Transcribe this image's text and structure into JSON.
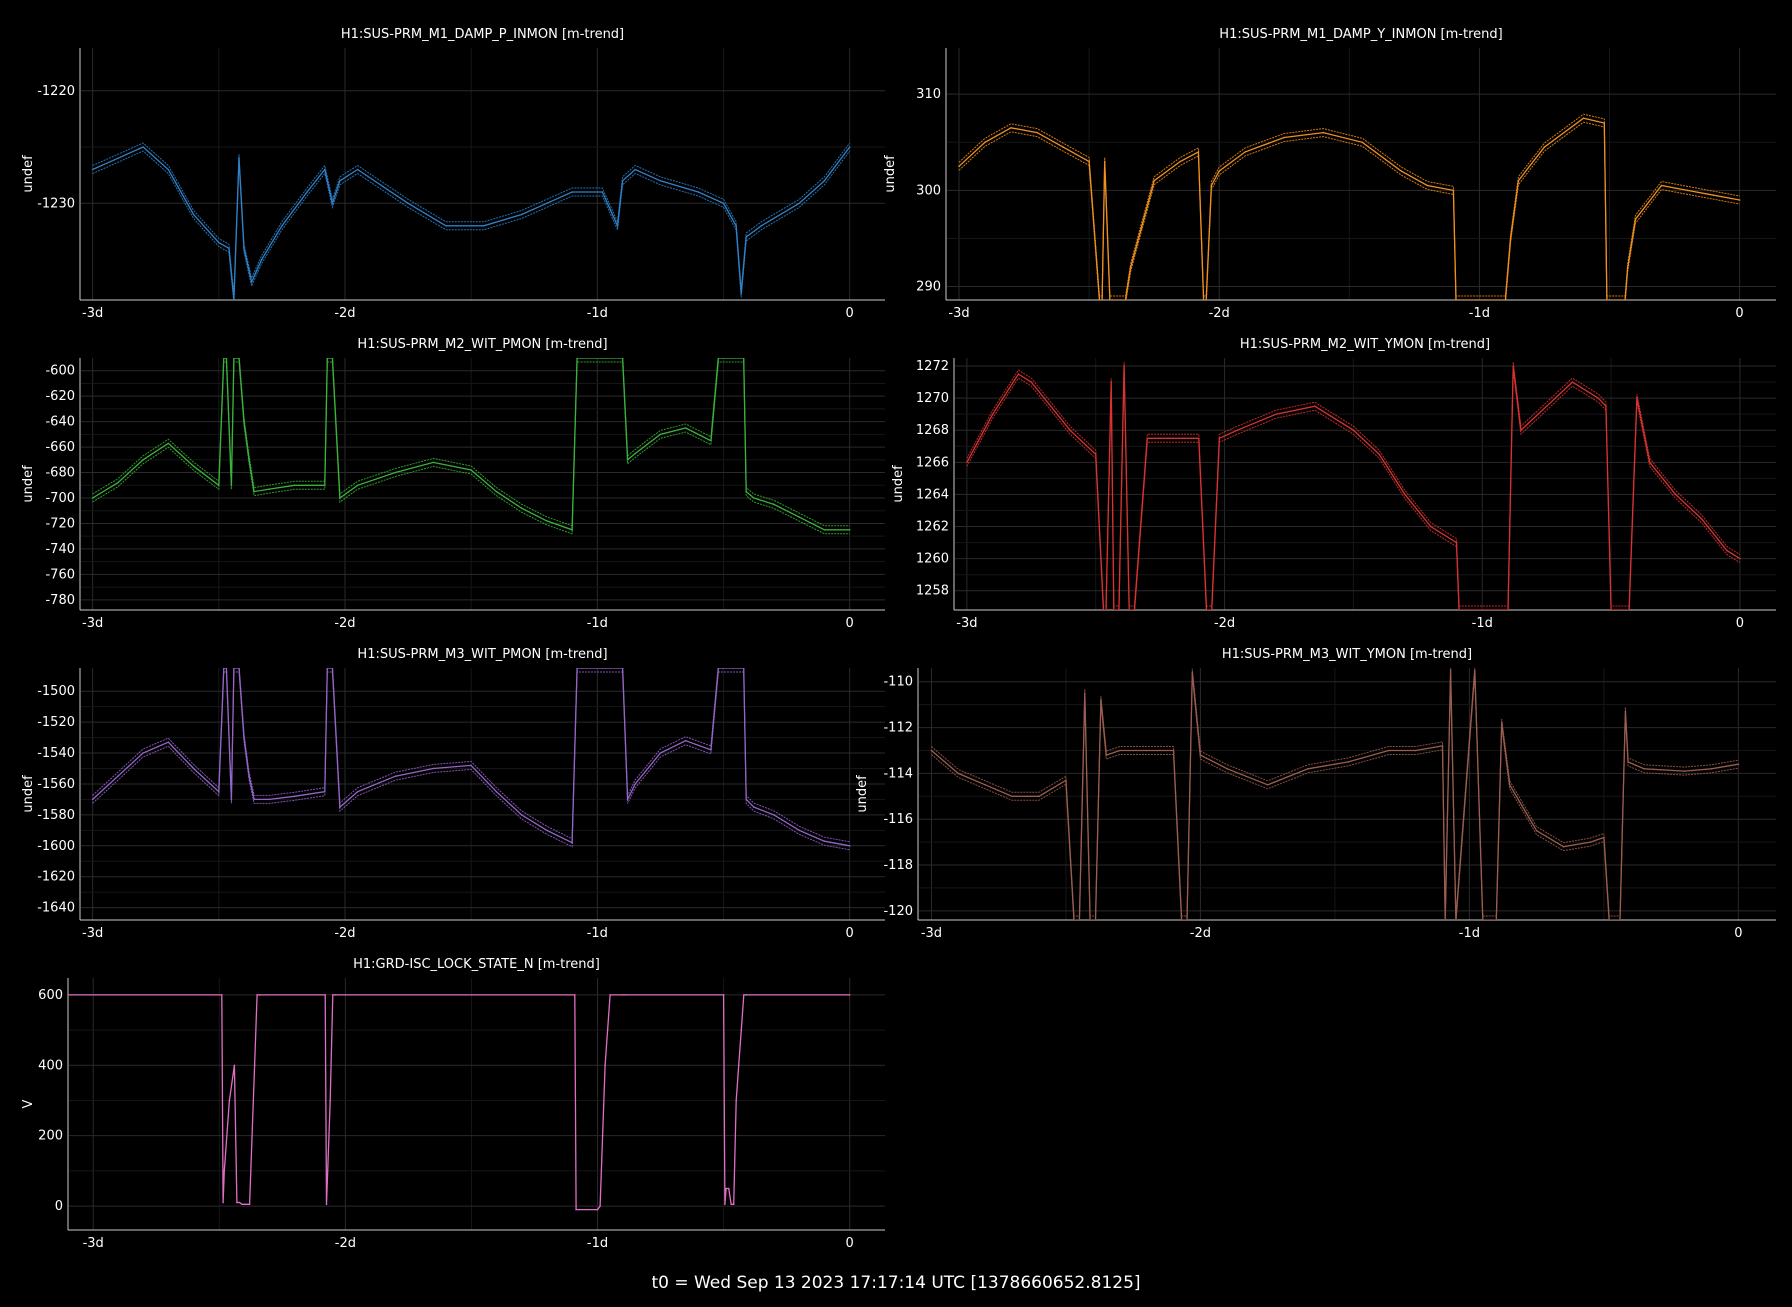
{
  "footer": "t0 = Wed Sep 13 2023 17:17:14 UTC [1378660652.8125]",
  "chart_data": [
    {
      "type": "line",
      "title": "H1:SUS-PRM_M1_DAMP_P_INMON [m-trend]",
      "ylabel": "undef",
      "color": "#2f82c8",
      "xlim": [
        -3.05,
        0.14
      ],
      "ylim": [
        -1238.6,
        -1216.2
      ],
      "xticks": [
        -3,
        -2,
        -1,
        0
      ],
      "xticklabels": [
        "-3d",
        "-2d",
        "-1d",
        "0"
      ],
      "yticks": [
        -1220,
        -1230
      ],
      "yticklabels": [
        "-1220",
        "-1230"
      ],
      "series": [
        {
          "x": [
            -3.0,
            -2.9,
            -2.8,
            -2.7,
            -2.6,
            -2.5,
            -2.46,
            -2.44,
            -2.42,
            -2.4,
            -2.37,
            -2.35,
            -2.33,
            -2.25,
            -2.15,
            -2.08,
            -2.05,
            -2.02,
            -1.95,
            -1.85,
            -1.75,
            -1.6,
            -1.45,
            -1.3,
            -1.2,
            -1.1,
            -0.98,
            -0.92,
            -0.9,
            -0.85,
            -0.75,
            -0.6,
            -0.5,
            -0.45,
            -0.43,
            -0.41,
            -0.35,
            -0.2,
            -0.1,
            0.0
          ],
          "y": [
            -1227,
            -1226,
            -1225,
            -1227,
            -1231,
            -1233.5,
            -1234,
            -1238.5,
            -1226,
            -1234,
            -1237,
            -1236,
            -1235,
            -1232,
            -1229,
            -1227,
            -1230,
            -1228,
            -1227,
            -1228.5,
            -1230,
            -1232,
            -1232,
            -1231,
            -1230,
            -1229,
            -1229,
            -1232,
            -1228,
            -1227,
            -1228,
            -1229,
            -1230,
            -1232,
            -1238,
            -1233,
            -1232,
            -1230,
            -1228,
            -1225
          ]
        }
      ]
    },
    {
      "type": "line",
      "title": "H1:SUS-PRM_M1_DAMP_Y_INMON [m-trend]",
      "ylabel": "undef",
      "color": "#f0901e",
      "xlim": [
        -3.05,
        0.14
      ],
      "ylim": [
        288.6,
        314.8
      ],
      "xticks": [
        -3,
        -2,
        -1,
        0
      ],
      "xticklabels": [
        "-3d",
        "-2d",
        "-1d",
        "0"
      ],
      "yticks": [
        310,
        300,
        290
      ],
      "yticklabels": [
        "310",
        "300",
        "290"
      ],
      "series": [
        {
          "x": [
            -3.0,
            -2.9,
            -2.8,
            -2.7,
            -2.6,
            -2.5,
            -2.46,
            -2.45,
            -2.44,
            -2.42,
            -2.41,
            -2.38,
            -2.36,
            -2.34,
            -2.3,
            -2.25,
            -2.15,
            -2.08,
            -2.06,
            -2.05,
            -2.03,
            -2.0,
            -1.9,
            -1.75,
            -1.6,
            -1.45,
            -1.3,
            -1.2,
            -1.1,
            -1.09,
            -1.08,
            -1.06,
            -0.98,
            -0.9,
            -0.88,
            -0.85,
            -0.75,
            -0.6,
            -0.52,
            -0.51,
            -0.5,
            -0.46,
            -0.44,
            -0.43,
            -0.4,
            -0.3,
            -0.2,
            -0.1,
            0.0
          ],
          "y": [
            302.5,
            305,
            306.5,
            306,
            304.5,
            303,
            288.6,
            288.6,
            303,
            288.6,
            288.6,
            288.6,
            288.6,
            292,
            296,
            301,
            303,
            304,
            288.6,
            288.6,
            300.5,
            302,
            304,
            305.5,
            306,
            305,
            302,
            300.5,
            300,
            288.6,
            288.6,
            288.6,
            288.6,
            288.6,
            295,
            301,
            304.5,
            307.5,
            307,
            288.6,
            288.6,
            288.6,
            288.6,
            292,
            297,
            300.5,
            300,
            299.5,
            299
          ]
        }
      ]
    },
    {
      "type": "line",
      "title": "H1:SUS-PRM_M2_WIT_PMON [m-trend]",
      "ylabel": "undef",
      "color": "#3cb23c",
      "xlim": [
        -3.05,
        0.14
      ],
      "ylim": [
        -788,
        -590
      ],
      "xticks": [
        -3,
        -2,
        -1,
        0
      ],
      "xticklabels": [
        "-3d",
        "-2d",
        "-1d",
        "0"
      ],
      "yticks": [
        -600,
        -620,
        -640,
        -660,
        -680,
        -700,
        -720,
        -740,
        -760,
        -780
      ],
      "yticklabels": [
        "-600",
        "-620",
        "-640",
        "-660",
        "-680",
        "-700",
        "-720",
        "-740",
        "-760",
        "-780"
      ],
      "series": [
        {
          "x": [
            -3.0,
            -2.9,
            -2.8,
            -2.7,
            -2.6,
            -2.5,
            -2.48,
            -2.47,
            -2.45,
            -2.44,
            -2.42,
            -2.4,
            -2.38,
            -2.36,
            -2.3,
            -2.2,
            -2.08,
            -2.07,
            -2.05,
            -2.02,
            -1.95,
            -1.8,
            -1.65,
            -1.5,
            -1.4,
            -1.3,
            -1.2,
            -1.1,
            -1.08,
            -1.06,
            -0.98,
            -0.9,
            -0.88,
            -0.85,
            -0.75,
            -0.65,
            -0.55,
            -0.52,
            -0.5,
            -0.46,
            -0.42,
            -0.41,
            -0.38,
            -0.3,
            -0.2,
            -0.1,
            0.0
          ],
          "y": [
            -700,
            -688,
            -670,
            -657,
            -675,
            -690,
            -590,
            -590,
            -690,
            -590,
            -590,
            -640,
            -670,
            -695,
            -693,
            -690,
            -690,
            -590,
            -590,
            -700,
            -690,
            -680,
            -672,
            -678,
            -695,
            -708,
            -718,
            -725,
            -590,
            -590,
            -590,
            -590,
            -670,
            -665,
            -650,
            -645,
            -655,
            -590,
            -590,
            -590,
            -590,
            -695,
            -700,
            -705,
            -715,
            -725,
            -725
          ]
        }
      ]
    },
    {
      "type": "line",
      "title": "H1:SUS-PRM_M2_WIT_YMON [m-trend]",
      "ylabel": "undef",
      "color": "#d83232",
      "xlim": [
        -3.05,
        0.14
      ],
      "ylim": [
        1256.8,
        1272.5
      ],
      "xticks": [
        -3,
        -2,
        -1,
        0
      ],
      "xticklabels": [
        "-3d",
        "-2d",
        "-1d",
        "0"
      ],
      "yticks": [
        1272,
        1270,
        1268,
        1266,
        1264,
        1262,
        1260,
        1258
      ],
      "yticklabels": [
        "1272",
        "1270",
        "1268",
        "1266",
        "1264",
        "1262",
        "1260",
        "1258"
      ],
      "series": [
        {
          "x": [
            -3.0,
            -2.9,
            -2.8,
            -2.75,
            -2.7,
            -2.6,
            -2.5,
            -2.47,
            -2.46,
            -2.44,
            -2.43,
            -2.41,
            -2.39,
            -2.37,
            -2.35,
            -2.3,
            -2.2,
            -2.1,
            -2.07,
            -2.05,
            -2.02,
            -1.95,
            -1.8,
            -1.65,
            -1.5,
            -1.4,
            -1.3,
            -1.2,
            -1.1,
            -1.09,
            -1.08,
            -1.06,
            -0.98,
            -0.92,
            -0.9,
            -0.88,
            -0.85,
            -0.75,
            -0.65,
            -0.55,
            -0.52,
            -0.5,
            -0.46,
            -0.43,
            -0.4,
            -0.35,
            -0.25,
            -0.15,
            -0.05,
            0.0
          ],
          "y": [
            1266,
            1269,
            1271.5,
            1271,
            1270,
            1268,
            1266.5,
            1256.8,
            1256.8,
            1271,
            1256.8,
            1256.8,
            1272,
            1256.8,
            1256.8,
            1267.5,
            1267.5,
            1267.5,
            1256.8,
            1256.8,
            1267.5,
            1268,
            1269,
            1269.5,
            1268,
            1266.5,
            1264,
            1262,
            1261,
            1256.8,
            1256.8,
            1256.8,
            1256.8,
            1256.8,
            1256.8,
            1272,
            1268,
            1269.5,
            1271,
            1270,
            1269.5,
            1256.8,
            1256.8,
            1256.8,
            1270,
            1266,
            1264,
            1262.5,
            1260.5,
            1260
          ]
        }
      ]
    },
    {
      "type": "line",
      "title": "H1:SUS-PRM_M3_WIT_PMON [m-trend]",
      "ylabel": "undef",
      "color": "#9466c8",
      "xlim": [
        -3.05,
        0.14
      ],
      "ylim": [
        -1648,
        -1485
      ],
      "xticks": [
        -3,
        -2,
        -1,
        0
      ],
      "xticklabels": [
        "-3d",
        "-2d",
        "-1d",
        "0"
      ],
      "yticks": [
        -1500,
        -1520,
        -1540,
        -1560,
        -1580,
        -1600,
        -1620,
        -1640
      ],
      "yticklabels": [
        "-1500",
        "-1520",
        "-1540",
        "-1560",
        "-1580",
        "-1600",
        "-1620",
        "-1640"
      ],
      "series": [
        {
          "x": [
            -3.0,
            -2.9,
            -2.8,
            -2.7,
            -2.6,
            -2.5,
            -2.48,
            -2.47,
            -2.45,
            -2.44,
            -2.42,
            -2.4,
            -2.38,
            -2.36,
            -2.3,
            -2.2,
            -2.08,
            -2.07,
            -2.05,
            -2.02,
            -1.95,
            -1.8,
            -1.65,
            -1.5,
            -1.4,
            -1.3,
            -1.2,
            -1.1,
            -1.08,
            -1.06,
            -0.98,
            -0.9,
            -0.88,
            -0.85,
            -0.75,
            -0.65,
            -0.55,
            -0.52,
            -0.5,
            -0.46,
            -0.42,
            -0.41,
            -0.38,
            -0.3,
            -0.2,
            -0.1,
            0.0
          ],
          "y": [
            -1570,
            -1555,
            -1540,
            -1533,
            -1550,
            -1565,
            -1485,
            -1485,
            -1570,
            -1485,
            -1485,
            -1530,
            -1555,
            -1570,
            -1570,
            -1568,
            -1565,
            -1485,
            -1485,
            -1575,
            -1565,
            -1555,
            -1550,
            -1548,
            -1565,
            -1580,
            -1590,
            -1598,
            -1485,
            -1485,
            -1485,
            -1485,
            -1570,
            -1560,
            -1540,
            -1532,
            -1538,
            -1485,
            -1485,
            -1485,
            -1485,
            -1570,
            -1575,
            -1580,
            -1590,
            -1597,
            -1600
          ]
        }
      ]
    },
    {
      "type": "line",
      "title": "H1:SUS-PRM_M3_WIT_YMON [m-trend]",
      "ylabel": "undef",
      "color": "#9a5e50",
      "xlim": [
        -3.05,
        0.14
      ],
      "ylim": [
        -120.4,
        -109.4
      ],
      "xticks": [
        -3,
        -2,
        -1,
        0
      ],
      "xticklabels": [
        "-3d",
        "-2d",
        "-1d",
        "0"
      ],
      "yticks": [
        -110,
        -112,
        -114,
        -116,
        -118,
        -120
      ],
      "yticklabels": [
        "-110",
        "-112",
        "-114",
        "-116",
        "-118",
        "-120"
      ],
      "series": [
        {
          "x": [
            -3.0,
            -2.9,
            -2.8,
            -2.7,
            -2.6,
            -2.5,
            -2.47,
            -2.45,
            -2.43,
            -2.41,
            -2.39,
            -2.37,
            -2.35,
            -2.3,
            -2.2,
            -2.1,
            -2.07,
            -2.05,
            -2.03,
            -2.0,
            -1.9,
            -1.75,
            -1.6,
            -1.45,
            -1.3,
            -1.2,
            -1.1,
            -1.09,
            -1.07,
            -1.05,
            -0.98,
            -0.95,
            -0.92,
            -0.9,
            -0.88,
            -0.85,
            -0.75,
            -0.65,
            -0.55,
            -0.5,
            -0.48,
            -0.46,
            -0.44,
            -0.42,
            -0.41,
            -0.35,
            -0.2,
            -0.1,
            0.0
          ],
          "y": [
            -113,
            -114,
            -114.5,
            -115,
            -115,
            -114.3,
            -120.4,
            -120.4,
            -110.5,
            -120.4,
            -120.4,
            -110.8,
            -113.2,
            -113,
            -113,
            -113,
            -120.4,
            -120.4,
            -109.6,
            -113.2,
            -113.8,
            -114.5,
            -113.8,
            -113.5,
            -113,
            -113,
            -112.8,
            -120.4,
            -109.5,
            -120.4,
            -109.5,
            -120.4,
            -120.4,
            -120.4,
            -111.8,
            -114.5,
            -116.5,
            -117.2,
            -117,
            -116.8,
            -120.4,
            -120.4,
            -120.4,
            -111.3,
            -113.5,
            -113.8,
            -113.9,
            -113.8,
            -113.6
          ]
        }
      ]
    },
    {
      "type": "line",
      "title": "H1:GRD-ISC_LOCK_STATE_N [m-trend]",
      "ylabel": "V",
      "color": "#e06ec4",
      "xlim": [
        -3.1,
        0.14
      ],
      "ylim": [
        -68,
        648
      ],
      "xticks": [
        -3,
        -2,
        -1,
        0
      ],
      "xticklabels": [
        "-3d",
        "-2d",
        "-1d",
        "0"
      ],
      "yticks": [
        600,
        400,
        200,
        0
      ],
      "yticklabels": [
        "600",
        "400",
        "200",
        "0"
      ],
      "series": [
        {
          "x": [
            -3.1,
            -2.49,
            -2.485,
            -2.48,
            -2.46,
            -2.44,
            -2.43,
            -2.42,
            -2.41,
            -2.4,
            -2.38,
            -2.36,
            -2.35,
            -2.34,
            -2.08,
            -2.075,
            -2.07,
            -2.06,
            -2.05,
            -2.04,
            -1.09,
            -1.085,
            -1.0,
            -0.99,
            -0.98,
            -0.97,
            -0.96,
            -0.95,
            -0.9,
            -0.89,
            -0.5,
            -0.495,
            -0.49,
            -0.48,
            -0.47,
            -0.46,
            -0.45,
            -0.44,
            -0.43,
            -0.42,
            -0.41,
            0.0
          ],
          "y": [
            600,
            600,
            10,
            100,
            300,
            400,
            10,
            10,
            5,
            5,
            5,
            400,
            600,
            600,
            600,
            5,
            100,
            300,
            600,
            600,
            600,
            -10,
            -10,
            0,
            200,
            400,
            500,
            600,
            600,
            600,
            600,
            5,
            50,
            50,
            5,
            5,
            300,
            400,
            500,
            600,
            600,
            600
          ]
        }
      ]
    }
  ]
}
